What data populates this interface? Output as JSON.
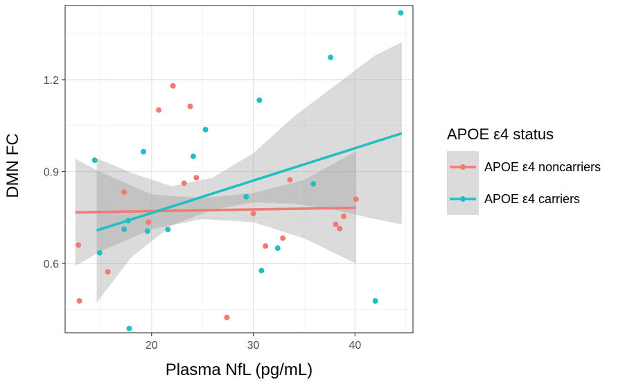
{
  "chart_data": {
    "type": "scatter",
    "xlabel": "Plasma NfL (pg/mL)",
    "ylabel": "DMN FC",
    "xlim": [
      11.5,
      45.7
    ],
    "ylim": [
      0.374,
      1.442
    ],
    "x_ticks": [
      20,
      30,
      40
    ],
    "x_tick_labels": [
      "20",
      "30",
      "40"
    ],
    "y_ticks": [
      0.6,
      0.9,
      1.2
    ],
    "y_tick_labels": [
      "0.6",
      "0.9",
      "1.2"
    ],
    "x_minor_ticks": [
      15,
      25,
      35,
      45
    ],
    "y_minor_ticks": [
      0.45,
      0.75,
      1.05,
      1.35
    ],
    "grid": true,
    "legend": {
      "title": "APOE ε4 status",
      "position": "right",
      "entries": [
        "APOE ε4 noncarriers",
        "APOE ε4 carriers"
      ]
    },
    "series": [
      {
        "name": "APOE ε4 noncarriers",
        "color": "#f07b72",
        "points": [
          [
            12.8,
            0.66
          ],
          [
            12.9,
            0.478
          ],
          [
            15.7,
            0.573
          ],
          [
            17.3,
            0.833
          ],
          [
            19.7,
            0.735
          ],
          [
            20.7,
            1.101
          ],
          [
            22.1,
            1.18
          ],
          [
            23.2,
            0.862
          ],
          [
            23.8,
            1.113
          ],
          [
            24.4,
            0.88
          ],
          [
            27.4,
            0.424
          ],
          [
            30.0,
            0.763
          ],
          [
            31.2,
            0.657
          ],
          [
            32.9,
            0.683
          ],
          [
            33.6,
            0.873
          ],
          [
            38.1,
            0.728
          ],
          [
            38.5,
            0.714
          ],
          [
            38.9,
            0.754
          ],
          [
            40.1,
            0.81
          ]
        ],
        "fit": {
          "x": [
            12.5,
            40.1
          ],
          "y": [
            0.767,
            0.782
          ]
        },
        "ci": {
          "x": [
            12.5,
            15,
            20,
            25,
            30,
            35,
            40.1
          ],
          "lower": [
            0.592,
            0.64,
            0.712,
            0.745,
            0.735,
            0.682,
            0.6
          ],
          "upper": [
            0.942,
            0.898,
            0.826,
            0.814,
            0.83,
            0.873,
            0.966
          ]
        }
      },
      {
        "name": "APOE ε4 carriers",
        "color": "#1fbfc4",
        "points": [
          [
            14.4,
            0.937
          ],
          [
            14.9,
            0.635
          ],
          [
            17.3,
            0.712
          ],
          [
            17.7,
            0.74
          ],
          [
            17.8,
            0.388
          ],
          [
            19.2,
            0.965
          ],
          [
            19.6,
            0.706
          ],
          [
            21.6,
            0.711
          ],
          [
            24.1,
            0.95
          ],
          [
            25.3,
            1.037
          ],
          [
            29.3,
            0.818
          ],
          [
            30.6,
            1.133
          ],
          [
            30.8,
            0.577
          ],
          [
            32.4,
            0.65
          ],
          [
            35.9,
            0.86
          ],
          [
            37.6,
            1.273
          ],
          [
            42.0,
            0.478
          ],
          [
            44.5,
            1.418
          ]
        ],
        "fit": {
          "x": [
            14.6,
            44.6
          ],
          "y": [
            0.708,
            1.025
          ]
        },
        "ci": {
          "x": [
            14.6,
            18,
            22,
            26,
            30,
            34,
            38,
            42,
            44.6
          ],
          "lower": [
            0.472,
            0.62,
            0.725,
            0.775,
            0.8,
            0.795,
            0.775,
            0.745,
            0.728
          ],
          "upper": [
            0.944,
            0.896,
            0.852,
            0.88,
            0.96,
            1.08,
            1.18,
            1.28,
            1.322
          ]
        }
      }
    ]
  }
}
